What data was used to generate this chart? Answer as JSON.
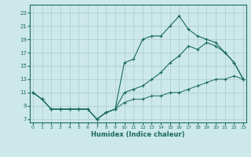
{
  "xlabel": "Humidex (Indice chaleur)",
  "bg_color": "#cce8e8",
  "grid_color": "#b0d0d0",
  "line_color": "#1a6b5a",
  "x_ticks": [
    0,
    1,
    2,
    3,
    4,
    5,
    6,
    7,
    8,
    9,
    10,
    11,
    12,
    13,
    14,
    15,
    16,
    17,
    18,
    19,
    20,
    21,
    22,
    23
  ],
  "y_ticks": [
    7,
    9,
    11,
    13,
    15,
    17,
    19,
    21,
    23
  ],
  "xlim": [
    -0.3,
    23.3
  ],
  "ylim": [
    6.5,
    24.2
  ],
  "line1_x": [
    0,
    1,
    2,
    3,
    4,
    5,
    6,
    7,
    8,
    9,
    10,
    11,
    12,
    13,
    14,
    15,
    16,
    17,
    18,
    19,
    20,
    21,
    22,
    23
  ],
  "line1_y": [
    11,
    10,
    8.5,
    8.5,
    8.5,
    8.5,
    8.5,
    7,
    8,
    8.5,
    15.5,
    16,
    19,
    19.5,
    19.5,
    21,
    22.5,
    20.5,
    19.5,
    19,
    18.5,
    17,
    15.5,
    13
  ],
  "line2_x": [
    0,
    1,
    2,
    3,
    4,
    5,
    6,
    7,
    8,
    9,
    10,
    11,
    12,
    13,
    14,
    15,
    16,
    17,
    18,
    19,
    20,
    21,
    22,
    23
  ],
  "line2_y": [
    11,
    10,
    8.5,
    8.5,
    8.5,
    8.5,
    8.5,
    7,
    8,
    8.5,
    11,
    11.5,
    12,
    13,
    14,
    15.5,
    16.5,
    18,
    17.5,
    18.5,
    18,
    17,
    15.5,
    13
  ],
  "line3_x": [
    0,
    1,
    2,
    3,
    4,
    5,
    6,
    7,
    8,
    9,
    10,
    11,
    12,
    13,
    14,
    15,
    16,
    17,
    18,
    19,
    20,
    21,
    22,
    23
  ],
  "line3_y": [
    11,
    10,
    8.5,
    8.5,
    8.5,
    8.5,
    8.5,
    7,
    8,
    8.5,
    9.5,
    10,
    10,
    10.5,
    10.5,
    11,
    11,
    11.5,
    12,
    12.5,
    13,
    13,
    13.5,
    13
  ]
}
